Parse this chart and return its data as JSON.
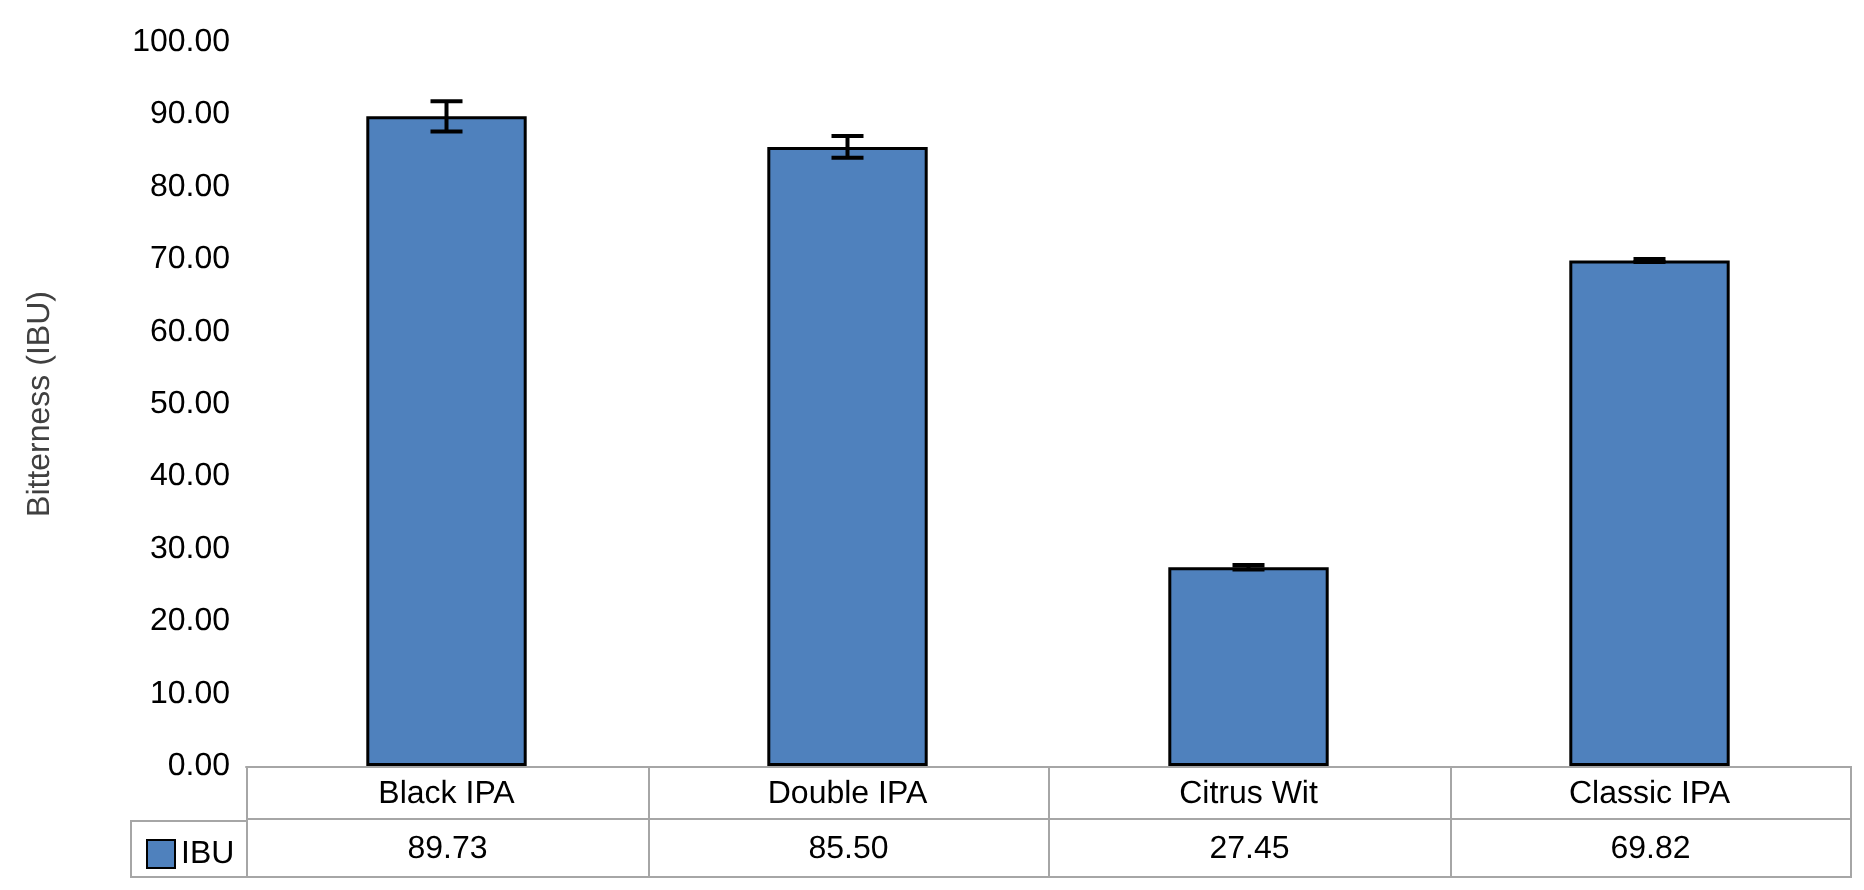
{
  "chart_data": {
    "type": "bar",
    "ylabel": "Bitterness (IBU)",
    "categories": [
      "Black IPA",
      "Double IPA",
      "Citrus Wit",
      "Classic IPA"
    ],
    "series": [
      {
        "name": "IBU",
        "color": "#4f81bd",
        "values": [
          89.73,
          85.5,
          27.45,
          69.82
        ],
        "value_labels": [
          "89.73",
          "85.50",
          "27.45",
          "69.82"
        ],
        "errors": [
          2.1,
          1.5,
          0.3,
          0.2
        ]
      }
    ],
    "ylim": [
      0,
      100
    ],
    "yticks": [
      {
        "value": 0,
        "label": "0.00"
      },
      {
        "value": 10,
        "label": "10.00"
      },
      {
        "value": 20,
        "label": "20.00"
      },
      {
        "value": 30,
        "label": "30.00"
      },
      {
        "value": 40,
        "label": "40.00"
      },
      {
        "value": 50,
        "label": "50.00"
      },
      {
        "value": 60,
        "label": "60.00"
      },
      {
        "value": 70,
        "label": "70.00"
      },
      {
        "value": 80,
        "label": "80.00"
      },
      {
        "value": 90,
        "label": "90.00"
      },
      {
        "value": 100,
        "label": "100.00"
      }
    ],
    "grid": false,
    "legend": "bottom left"
  }
}
